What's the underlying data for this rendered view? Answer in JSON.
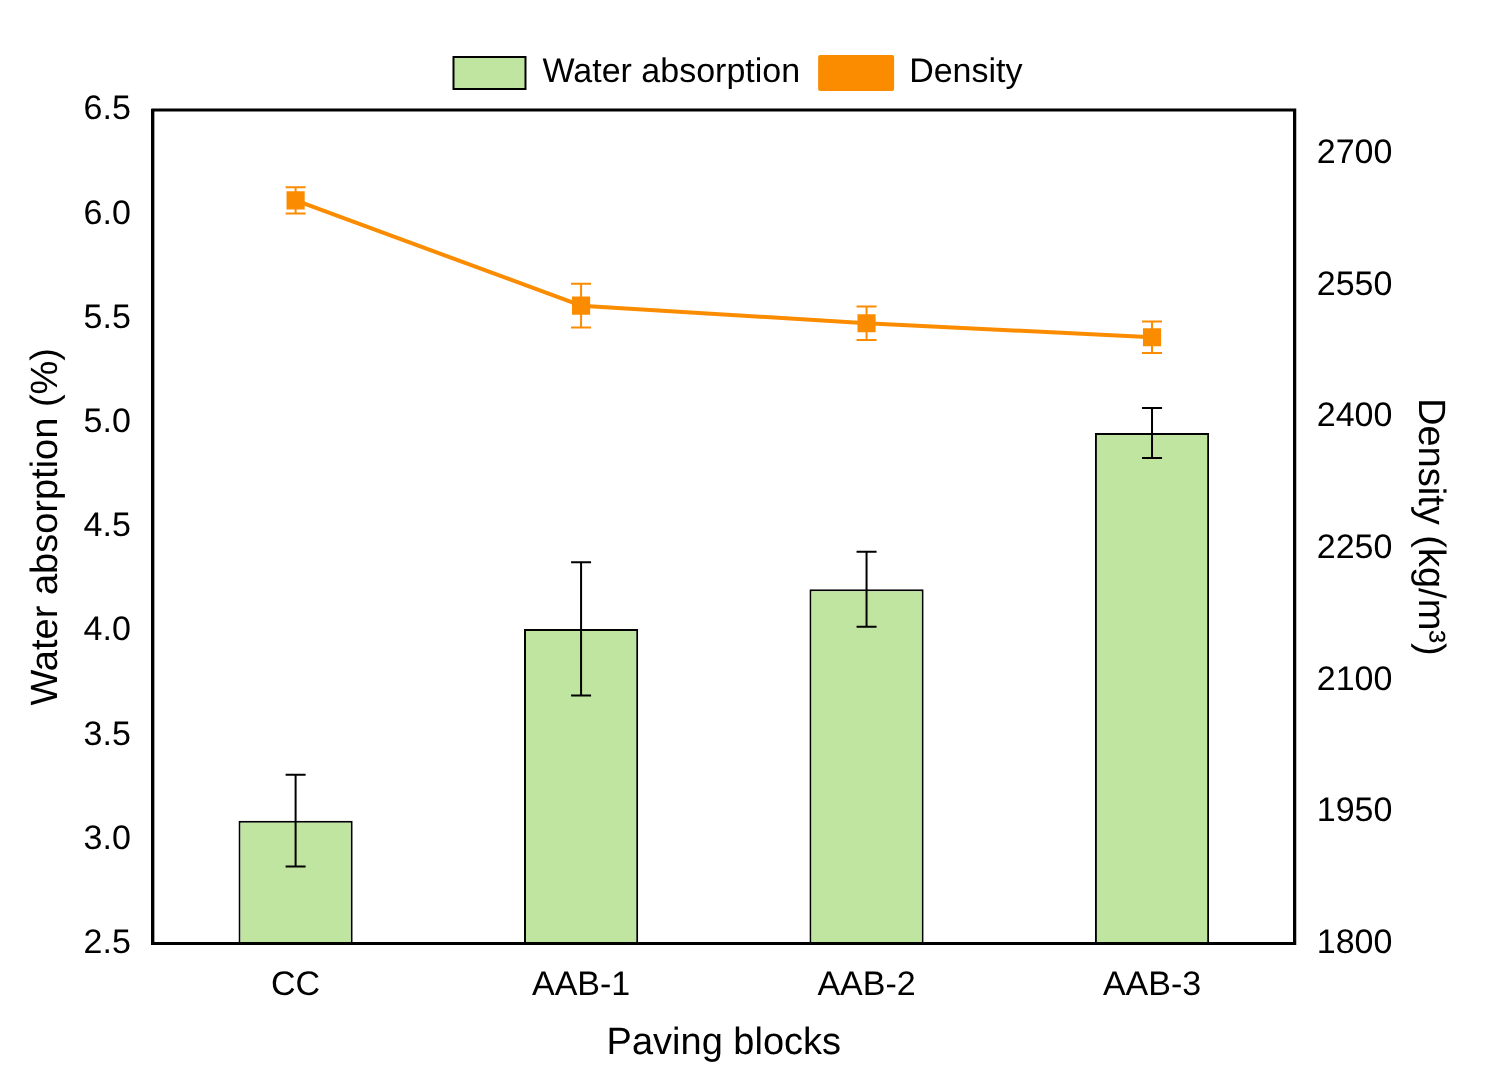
{
  "chart_data": {
    "type": "bar",
    "xlabel": "Paving blocks",
    "ylabel": "Water absorption (%)",
    "y2label": "Density (kg/m³)",
    "categories": [
      "CC",
      "AAB-1",
      "AAB-2",
      "AAB-3"
    ],
    "series": [
      {
        "name": "Water absorption",
        "color": "#c0e5a0",
        "values": [
          3.09,
          4.01,
          4.2,
          4.95
        ],
        "errors": [
          0.22,
          0.32,
          0.18,
          0.12
        ]
      },
      {
        "name": "Density",
        "type": "line",
        "axis": "y2",
        "color": "#fb8c00",
        "values": [
          2647,
          2527,
          2507,
          2491
        ],
        "errors": [
          15,
          25,
          19,
          18
        ]
      }
    ],
    "ylim": [
      2.5,
      6.5
    ],
    "yticks": [
      2.5,
      {
        "value": 3,
        "label": "3.0"
      },
      3.5,
      {
        "value": 4,
        "label": "4.0"
      },
      4.5,
      {
        "value": 5,
        "label": "5.0"
      },
      5.5,
      {
        "value": 6,
        "label": "6.0"
      },
      6.5
    ],
    "y2lim": [
      1800,
      2750
    ],
    "y2ticks": [
      1800,
      1950,
      2100,
      2250,
      2400,
      2550,
      2700
    ],
    "grid": false,
    "legend": "top",
    "marker": "square",
    "line_style": "solid"
  }
}
